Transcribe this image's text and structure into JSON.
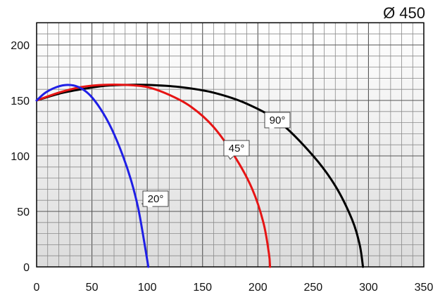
{
  "chart_data": {
    "type": "line",
    "title": "Ø 450",
    "xlabel": "",
    "ylabel": "",
    "xlim": [
      0,
      350
    ],
    "ylim": [
      0,
      220
    ],
    "x_ticks": [
      0,
      50,
      100,
      150,
      200,
      250,
      300,
      350
    ],
    "y_ticks": [
      0,
      50,
      100,
      150,
      200
    ],
    "grid": true,
    "grid_minor_x": 10,
    "grid_minor_y": 10,
    "legend": "none",
    "series": [
      {
        "name": "20°",
        "color": "#1f1fe6",
        "x": [
          0,
          8,
          18,
          28,
          38,
          48,
          58,
          68,
          78,
          86,
          92,
          96,
          99,
          101
        ],
        "y": [
          150,
          157,
          162,
          164,
          162,
          155,
          142,
          124,
          100,
          76,
          52,
          30,
          12,
          0
        ]
      },
      {
        "name": "45°",
        "color": "#e61414",
        "x": [
          0,
          20,
          40,
          60,
          80,
          100,
          120,
          140,
          160,
          180,
          195,
          205,
          210,
          211
        ],
        "y": [
          150,
          157,
          162,
          164,
          164,
          162,
          155,
          144,
          126,
          98,
          70,
          40,
          12,
          0
        ]
      },
      {
        "name": "90°",
        "color": "#000000",
        "x": [
          0,
          20,
          40,
          60,
          80,
          100,
          130,
          160,
          190,
          220,
          250,
          270,
          285,
          292,
          295
        ],
        "y": [
          150,
          156,
          160,
          163,
          164,
          164,
          162,
          157,
          147,
          130,
          100,
          73,
          43,
          20,
          0
        ]
      }
    ],
    "annotations": [
      {
        "text": "20°",
        "series": "20°"
      },
      {
        "text": "45°",
        "series": "45°"
      },
      {
        "text": "90°",
        "series": "90°"
      }
    ]
  }
}
